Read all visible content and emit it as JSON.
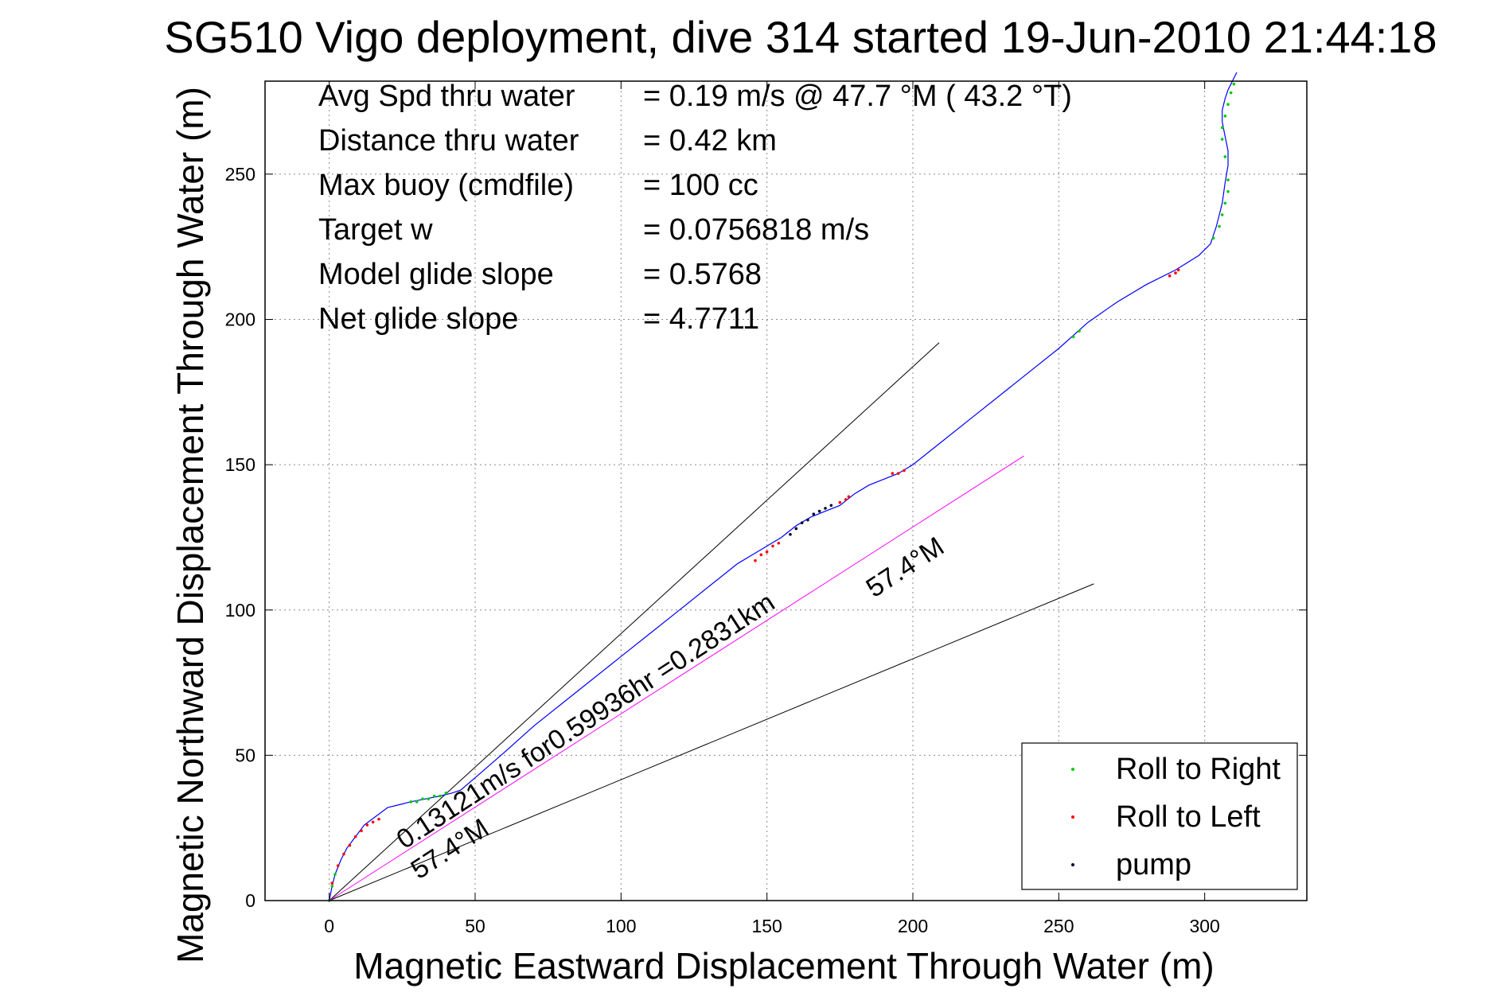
{
  "chart_data": {
    "type": "line",
    "title": "SG510 Vigo deployment, dive 314 started 19-Jun-2010 21:44:18",
    "xlabel": "Magnetic Eastward Displacement Through Water (m)",
    "ylabel": "Magnetic Northward Displacement Through Water (m)",
    "xlim": [
      -22,
      335
    ],
    "ylim": [
      0,
      282
    ],
    "xticks": [
      0,
      50,
      100,
      150,
      200,
      250,
      300
    ],
    "yticks": [
      0,
      50,
      100,
      150,
      200,
      250
    ],
    "grid": true,
    "legend_position": "bottom-right",
    "info": [
      {
        "label": "Avg Spd thru water",
        "value": "=  0.19 m/s @  47.7 °M ( 43.2 °T)"
      },
      {
        "label": "Distance thru water",
        "value": "=  0.42 km"
      },
      {
        "label": "Max buoy (cmdfile)",
        "value": "= 100 cc"
      },
      {
        "label": "Target w",
        "value": "= 0.0756818 m/s"
      },
      {
        "label": "Model glide slope",
        "value": "= 0.5768"
      },
      {
        "label": "Net glide slope",
        "value": "= 4.7711"
      }
    ],
    "annotations": {
      "current_text": "0.13121m/s for0.59936hr =0.2831km",
      "heading_text_upper": "57.4°M",
      "heading_text_lower": "57.4°M"
    },
    "reference_lines": [
      {
        "color": "#000000",
        "x": [
          0,
          209
        ],
        "y": [
          0,
          192
        ]
      },
      {
        "color": "#000000",
        "x": [
          0,
          262
        ],
        "y": [
          0,
          109
        ]
      },
      {
        "color": "#ff00ff",
        "x": [
          0,
          238
        ],
        "y": [
          0,
          153
        ]
      }
    ],
    "track": {
      "color": "#0000ff",
      "x": [
        0,
        1,
        2,
        4,
        6,
        9,
        12,
        16,
        20,
        24,
        28,
        33,
        38,
        42,
        45,
        52,
        60,
        70,
        80,
        90,
        100,
        110,
        120,
        130,
        140,
        145,
        150,
        155,
        160,
        165,
        170,
        175,
        180,
        185,
        190,
        195,
        200,
        210,
        220,
        230,
        240,
        250,
        260,
        270,
        280,
        290,
        298,
        302,
        304,
        306,
        307,
        308,
        308,
        307,
        306,
        306,
        307,
        308,
        309,
        310,
        311
      ],
      "y": [
        0,
        5,
        9,
        14,
        18,
        22,
        26,
        29,
        32,
        33,
        34,
        35,
        36,
        37,
        38,
        44,
        51,
        60,
        68,
        76,
        84,
        92,
        100,
        108,
        116,
        119,
        122,
        125,
        129,
        132,
        134,
        136,
        140,
        143,
        145,
        147,
        150,
        158,
        166,
        174,
        182,
        190,
        199,
        206,
        212,
        217,
        222,
        226,
        232,
        240,
        247,
        253,
        258,
        263,
        268,
        272,
        276,
        279,
        281,
        283,
        285
      ]
    },
    "series": [
      {
        "name": "Roll to Right",
        "color": "#00cc00",
        "x": [
          0,
          1,
          2,
          28,
          30,
          32,
          34,
          36,
          38,
          40,
          255,
          257,
          303,
          305,
          306,
          307,
          308,
          308,
          307,
          306,
          306,
          307,
          308,
          309,
          310
        ],
        "y": [
          0,
          5,
          9,
          34,
          34,
          35,
          35,
          36,
          36,
          37,
          194,
          196,
          228,
          232,
          236,
          240,
          244,
          248,
          256,
          262,
          266,
          270,
          274,
          278,
          281
        ]
      },
      {
        "name": "Roll to Left",
        "color": "#ff0000",
        "x": [
          1,
          3,
          5,
          7,
          9,
          11,
          13,
          15,
          17,
          146,
          148,
          150,
          152,
          154,
          175,
          177,
          178,
          193,
          195,
          197,
          288,
          290,
          291
        ],
        "y": [
          6,
          12,
          16,
          19,
          22,
          24,
          26,
          27,
          28,
          117,
          119,
          120,
          122,
          123,
          137,
          138,
          139,
          147,
          147,
          148,
          215,
          216,
          217
        ]
      },
      {
        "name": "pump",
        "color": "#000033",
        "x": [
          158,
          160,
          162,
          164,
          166,
          168,
          170,
          172
        ],
        "y": [
          126,
          128,
          130,
          131,
          133,
          134,
          135,
          136
        ]
      }
    ]
  }
}
